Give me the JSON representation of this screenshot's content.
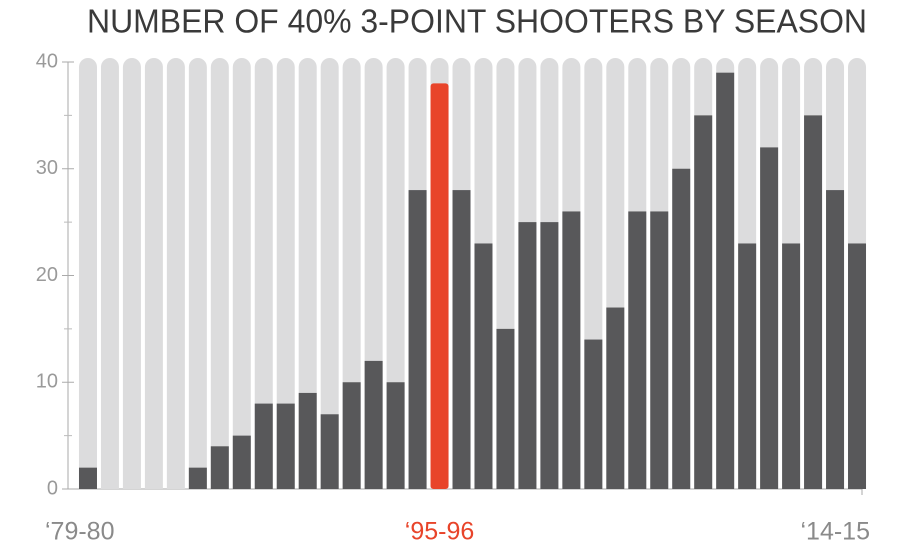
{
  "chart_data": {
    "type": "bar",
    "title": "NUMBER OF 40% 3-POINT SHOOTERS BY SEASON",
    "categories": [
      "‘79-80",
      null,
      null,
      null,
      null,
      null,
      null,
      null,
      null,
      null,
      null,
      null,
      null,
      null,
      null,
      null,
      "‘95-96",
      null,
      null,
      null,
      null,
      null,
      null,
      null,
      null,
      null,
      null,
      null,
      null,
      null,
      null,
      null,
      null,
      null,
      null,
      "‘14-15"
    ],
    "values": [
      2,
      0,
      0,
      0,
      0,
      2,
      4,
      5,
      8,
      8,
      9,
      7,
      10,
      12,
      10,
      28,
      38,
      28,
      23,
      15,
      25,
      25,
      26,
      14,
      17,
      26,
      26,
      30,
      35,
      39,
      23,
      32,
      23,
      35,
      28,
      23
    ],
    "color": "#58585a",
    "highlight_category": "‘95-96",
    "highlight_color": "#e8442a",
    "track_color": "#dcdcdd",
    "ylim": [
      0,
      40
    ],
    "yticks": [
      0,
      10,
      20,
      30,
      40
    ],
    "minor_yticks": [
      5,
      15,
      25,
      35
    ]
  }
}
